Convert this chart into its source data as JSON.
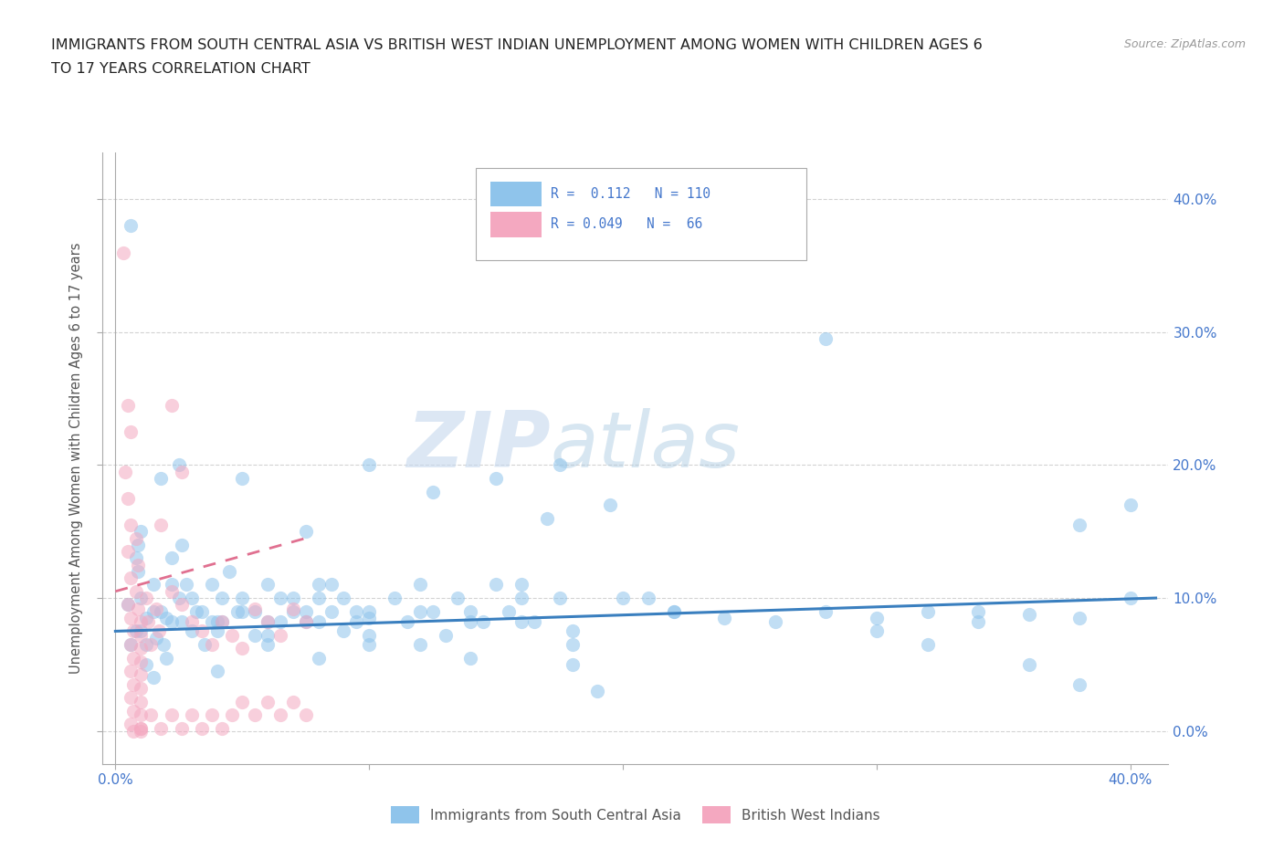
{
  "title_line1": "IMMIGRANTS FROM SOUTH CENTRAL ASIA VS BRITISH WEST INDIAN UNEMPLOYMENT AMONG WOMEN WITH CHILDREN AGES 6",
  "title_line2": "TO 17 YEARS CORRELATION CHART",
  "source": "Source: ZipAtlas.com",
  "ylabel": "Unemployment Among Women with Children Ages 6 to 17 years",
  "ytick_vals": [
    0.0,
    0.1,
    0.2,
    0.3,
    0.4
  ],
  "ytick_labels": [
    "0.0%",
    "10.0%",
    "20.0%",
    "30.0%",
    "40.0%"
  ],
  "xlim": [
    -0.005,
    0.415
  ],
  "ylim": [
    -0.025,
    0.435
  ],
  "color_blue": "#8fc4eb",
  "color_pink": "#f4a8c0",
  "trendline_blue_color": "#3a7fbf",
  "trendline_pink_color": "#e07090",
  "background_color": "#ffffff",
  "grid_color": "#c8c8c8",
  "tick_label_color": "#4477cc",
  "legend1_label": "Immigrants from South Central Asia",
  "legend2_label": "British West Indians",
  "blue_scatter": [
    [
      0.005,
      0.095
    ],
    [
      0.008,
      0.075
    ],
    [
      0.01,
      0.1
    ],
    [
      0.012,
      0.085
    ],
    [
      0.015,
      0.11
    ],
    [
      0.006,
      0.065
    ],
    [
      0.009,
      0.12
    ],
    [
      0.015,
      0.09
    ],
    [
      0.02,
      0.085
    ],
    [
      0.025,
      0.1
    ],
    [
      0.008,
      0.13
    ],
    [
      0.01,
      0.075
    ],
    [
      0.012,
      0.065
    ],
    [
      0.018,
      0.09
    ],
    [
      0.022,
      0.082
    ],
    [
      0.028,
      0.11
    ],
    [
      0.032,
      0.09
    ],
    [
      0.038,
      0.082
    ],
    [
      0.042,
      0.1
    ],
    [
      0.048,
      0.09
    ],
    [
      0.006,
      0.38
    ],
    [
      0.009,
      0.14
    ],
    [
      0.012,
      0.05
    ],
    [
      0.016,
      0.07
    ],
    [
      0.019,
      0.065
    ],
    [
      0.022,
      0.13
    ],
    [
      0.026,
      0.082
    ],
    [
      0.03,
      0.075
    ],
    [
      0.034,
      0.09
    ],
    [
      0.038,
      0.11
    ],
    [
      0.042,
      0.082
    ],
    [
      0.05,
      0.1
    ],
    [
      0.055,
      0.09
    ],
    [
      0.06,
      0.072
    ],
    [
      0.065,
      0.082
    ],
    [
      0.07,
      0.1
    ],
    [
      0.075,
      0.09
    ],
    [
      0.08,
      0.082
    ],
    [
      0.085,
      0.11
    ],
    [
      0.09,
      0.075
    ],
    [
      0.095,
      0.09
    ],
    [
      0.1,
      0.085
    ],
    [
      0.01,
      0.15
    ],
    [
      0.015,
      0.04
    ],
    [
      0.018,
      0.19
    ],
    [
      0.022,
      0.11
    ],
    [
      0.026,
      0.14
    ],
    [
      0.03,
      0.1
    ],
    [
      0.035,
      0.065
    ],
    [
      0.04,
      0.082
    ],
    [
      0.045,
      0.12
    ],
    [
      0.05,
      0.09
    ],
    [
      0.055,
      0.072
    ],
    [
      0.06,
      0.11
    ],
    [
      0.065,
      0.1
    ],
    [
      0.07,
      0.09
    ],
    [
      0.075,
      0.082
    ],
    [
      0.08,
      0.11
    ],
    [
      0.085,
      0.09
    ],
    [
      0.09,
      0.1
    ],
    [
      0.095,
      0.082
    ],
    [
      0.1,
      0.09
    ],
    [
      0.11,
      0.1
    ],
    [
      0.115,
      0.082
    ],
    [
      0.12,
      0.11
    ],
    [
      0.125,
      0.09
    ],
    [
      0.13,
      0.072
    ],
    [
      0.135,
      0.1
    ],
    [
      0.14,
      0.09
    ],
    [
      0.145,
      0.082
    ],
    [
      0.15,
      0.11
    ],
    [
      0.155,
      0.09
    ],
    [
      0.16,
      0.1
    ],
    [
      0.165,
      0.082
    ],
    [
      0.17,
      0.16
    ],
    [
      0.175,
      0.1
    ],
    [
      0.18,
      0.05
    ],
    [
      0.19,
      0.03
    ],
    [
      0.195,
      0.17
    ],
    [
      0.21,
      0.1
    ],
    [
      0.22,
      0.09
    ],
    [
      0.025,
      0.2
    ],
    [
      0.05,
      0.19
    ],
    [
      0.075,
      0.15
    ],
    [
      0.1,
      0.2
    ],
    [
      0.125,
      0.18
    ],
    [
      0.15,
      0.19
    ],
    [
      0.175,
      0.2
    ],
    [
      0.28,
      0.295
    ],
    [
      0.04,
      0.075
    ],
    [
      0.06,
      0.082
    ],
    [
      0.08,
      0.1
    ],
    [
      0.1,
      0.065
    ],
    [
      0.12,
      0.09
    ],
    [
      0.14,
      0.082
    ],
    [
      0.16,
      0.11
    ],
    [
      0.18,
      0.075
    ],
    [
      0.02,
      0.055
    ],
    [
      0.04,
      0.045
    ],
    [
      0.06,
      0.065
    ],
    [
      0.08,
      0.055
    ],
    [
      0.1,
      0.072
    ],
    [
      0.12,
      0.065
    ],
    [
      0.14,
      0.055
    ],
    [
      0.16,
      0.082
    ],
    [
      0.18,
      0.065
    ],
    [
      0.2,
      0.1
    ],
    [
      0.22,
      0.09
    ],
    [
      0.24,
      0.085
    ],
    [
      0.26,
      0.082
    ],
    [
      0.28,
      0.09
    ],
    [
      0.3,
      0.085
    ],
    [
      0.32,
      0.09
    ],
    [
      0.34,
      0.082
    ],
    [
      0.36,
      0.088
    ],
    [
      0.38,
      0.085
    ],
    [
      0.4,
      0.1
    ],
    [
      0.3,
      0.075
    ],
    [
      0.32,
      0.065
    ],
    [
      0.34,
      0.09
    ],
    [
      0.36,
      0.05
    ],
    [
      0.38,
      0.035
    ],
    [
      0.4,
      0.17
    ],
    [
      0.38,
      0.155
    ]
  ],
  "pink_scatter": [
    [
      0.003,
      0.36
    ],
    [
      0.005,
      0.245
    ],
    [
      0.006,
      0.225
    ],
    [
      0.004,
      0.195
    ],
    [
      0.005,
      0.175
    ],
    [
      0.006,
      0.155
    ],
    [
      0.008,
      0.145
    ],
    [
      0.005,
      0.135
    ],
    [
      0.009,
      0.125
    ],
    [
      0.006,
      0.115
    ],
    [
      0.008,
      0.105
    ],
    [
      0.005,
      0.095
    ],
    [
      0.009,
      0.092
    ],
    [
      0.006,
      0.085
    ],
    [
      0.01,
      0.082
    ],
    [
      0.007,
      0.075
    ],
    [
      0.01,
      0.072
    ],
    [
      0.006,
      0.065
    ],
    [
      0.01,
      0.062
    ],
    [
      0.007,
      0.055
    ],
    [
      0.01,
      0.052
    ],
    [
      0.006,
      0.045
    ],
    [
      0.01,
      0.042
    ],
    [
      0.007,
      0.035
    ],
    [
      0.01,
      0.032
    ],
    [
      0.006,
      0.025
    ],
    [
      0.01,
      0.022
    ],
    [
      0.007,
      0.015
    ],
    [
      0.01,
      0.012
    ],
    [
      0.006,
      0.005
    ],
    [
      0.01,
      0.002
    ],
    [
      0.007,
      0.0
    ],
    [
      0.01,
      0.0
    ],
    [
      0.012,
      0.1
    ],
    [
      0.016,
      0.092
    ],
    [
      0.013,
      0.082
    ],
    [
      0.017,
      0.075
    ],
    [
      0.014,
      0.065
    ],
    [
      0.022,
      0.245
    ],
    [
      0.026,
      0.195
    ],
    [
      0.022,
      0.105
    ],
    [
      0.026,
      0.095
    ],
    [
      0.03,
      0.082
    ],
    [
      0.034,
      0.075
    ],
    [
      0.038,
      0.065
    ],
    [
      0.042,
      0.082
    ],
    [
      0.046,
      0.072
    ],
    [
      0.05,
      0.062
    ],
    [
      0.055,
      0.092
    ],
    [
      0.06,
      0.082
    ],
    [
      0.065,
      0.072
    ],
    [
      0.07,
      0.092
    ],
    [
      0.075,
      0.082
    ],
    [
      0.01,
      0.002
    ],
    [
      0.014,
      0.012
    ],
    [
      0.018,
      0.002
    ],
    [
      0.022,
      0.012
    ],
    [
      0.026,
      0.002
    ],
    [
      0.03,
      0.012
    ],
    [
      0.034,
      0.002
    ],
    [
      0.038,
      0.012
    ],
    [
      0.042,
      0.002
    ],
    [
      0.046,
      0.012
    ],
    [
      0.05,
      0.022
    ],
    [
      0.055,
      0.012
    ],
    [
      0.06,
      0.022
    ],
    [
      0.065,
      0.012
    ],
    [
      0.07,
      0.022
    ],
    [
      0.075,
      0.012
    ],
    [
      0.018,
      0.155
    ]
  ],
  "blue_trend_x": [
    0.0,
    0.41
  ],
  "blue_trend_y": [
    0.075,
    0.1
  ],
  "pink_trend_x": [
    0.0,
    0.075
  ],
  "pink_trend_y": [
    0.105,
    0.145
  ]
}
